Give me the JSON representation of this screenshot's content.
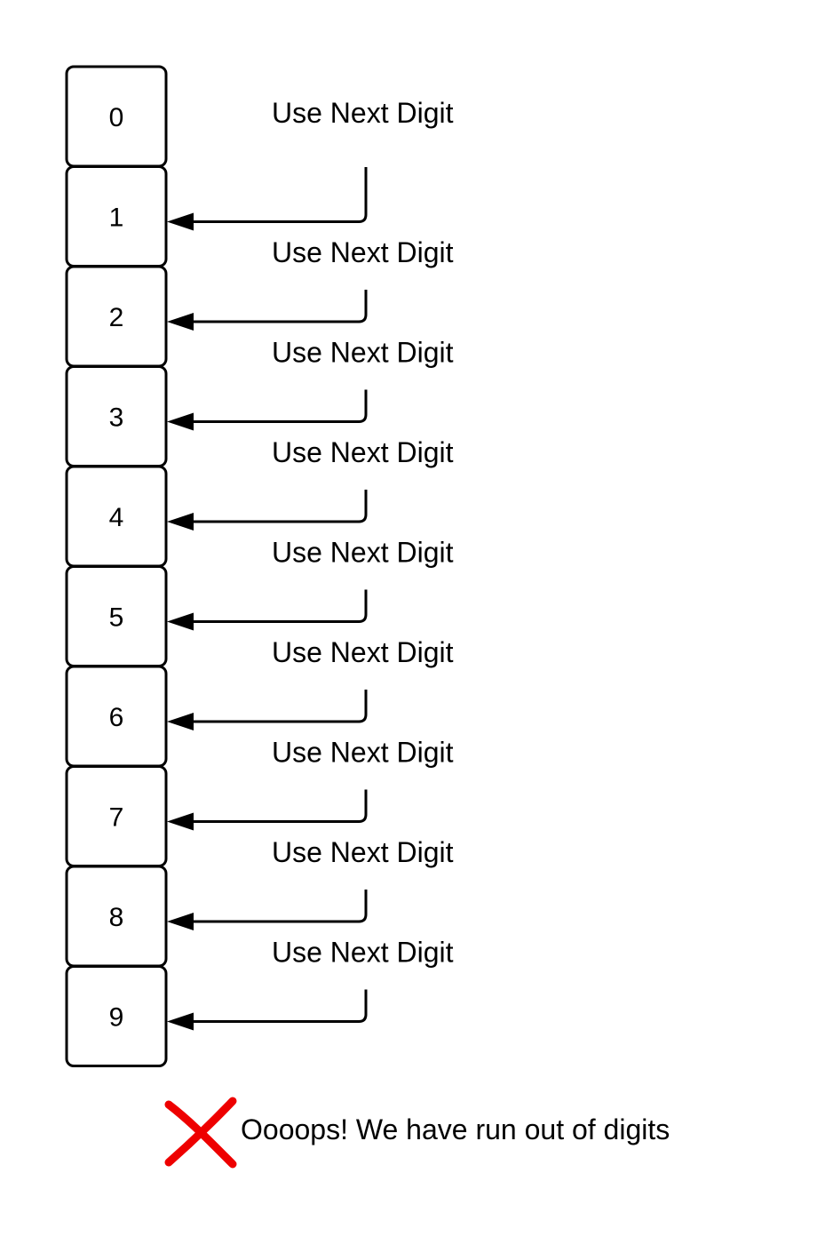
{
  "digits": [
    "0",
    "1",
    "2",
    "3",
    "4",
    "5",
    "6",
    "7",
    "8",
    "9"
  ],
  "steps": [
    "Use Next Digit",
    "Use Next Digit",
    "Use Next Digit",
    "Use Next Digit",
    "Use Next Digit",
    "Use Next Digit",
    "Use Next Digit",
    "Use Next Digit",
    "Use Next Digit"
  ],
  "footer": {
    "message": "Oooops! We have run out of digits",
    "icon": "red-x-icon",
    "icon_color": "#ee0000"
  }
}
